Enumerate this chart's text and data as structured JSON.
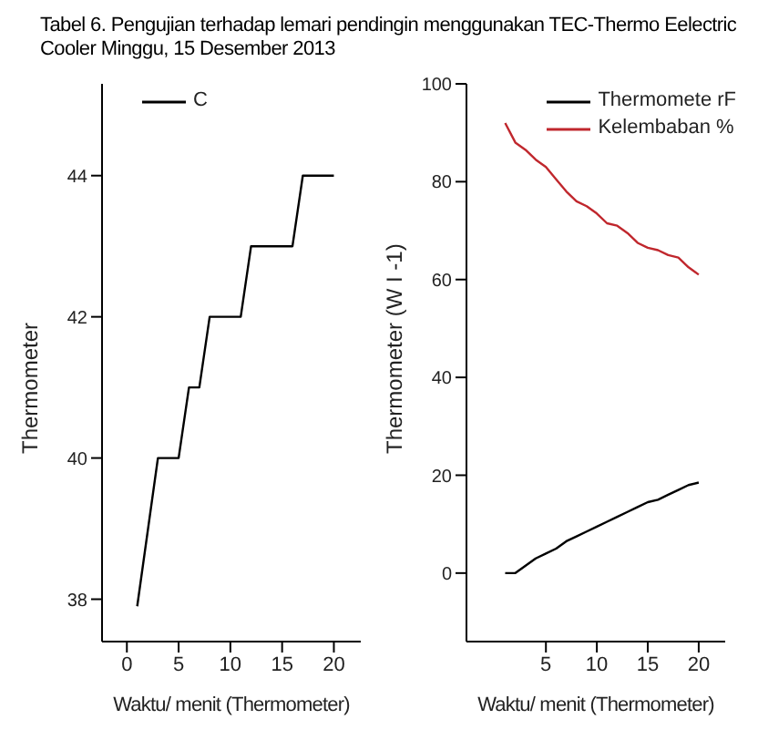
{
  "chart_data": [
    {
      "type": "line",
      "title": "Tabel  6. Pengujian terhadap lemari pendingin menggunakan TEC-Thermo Eelectric Cooler Minggu, 15 Desember 2013",
      "xlabel": "Waktu/ menit (Thermometer)",
      "ylabel": "Thermometer",
      "legend": "top",
      "marker": "none",
      "grid": false,
      "xlim": [
        -2.4,
        22.6
      ],
      "xticks": [
        0,
        5,
        10,
        15,
        20
      ],
      "ylim": [
        37.4,
        45.3
      ],
      "yticks": [
        38,
        40,
        42,
        44
      ],
      "x": [
        1,
        3,
        5,
        6,
        7,
        8,
        11,
        12,
        16,
        17,
        20
      ],
      "series": [
        {
          "name": "C",
          "color": "#000000",
          "values": [
            37.9,
            40,
            40,
            41,
            41,
            42,
            42,
            43,
            43,
            44,
            44
          ]
        }
      ]
    },
    {
      "type": "line",
      "xlabel": "Waktu/ menit (Thermometer)",
      "ylabel": "Thermometer (W I -1)",
      "legend": "top right",
      "marker": "none",
      "grid": false,
      "xlim": [
        -2.8,
        22.6
      ],
      "xticks": [
        5,
        10,
        15,
        20
      ],
      "ylim": [
        -14,
        100
      ],
      "yticks": [
        0,
        20,
        40,
        60,
        80,
        100
      ],
      "x": [
        1,
        2,
        3,
        4,
        5,
        6,
        7,
        8,
        9,
        10,
        11,
        12,
        13,
        14,
        15,
        16,
        17,
        18,
        19,
        20
      ],
      "series": [
        {
          "name": "Thermomete rF",
          "color": "#000000",
          "values": [
            0,
            0,
            1.5,
            3,
            4,
            5,
            6.5,
            7.5,
            8.5,
            9.5,
            10.5,
            11.5,
            12.5,
            13.5,
            14.5,
            15,
            16,
            17,
            18,
            18.5
          ]
        },
        {
          "name": "Kelembaban %",
          "color": "#c0272d",
          "values": [
            92,
            88,
            86.5,
            84.5,
            83,
            80.5,
            78,
            76,
            75,
            73.5,
            71.5,
            71,
            69.5,
            67.5,
            66.5,
            66,
            65,
            64.5,
            62.5,
            61
          ]
        }
      ]
    }
  ]
}
